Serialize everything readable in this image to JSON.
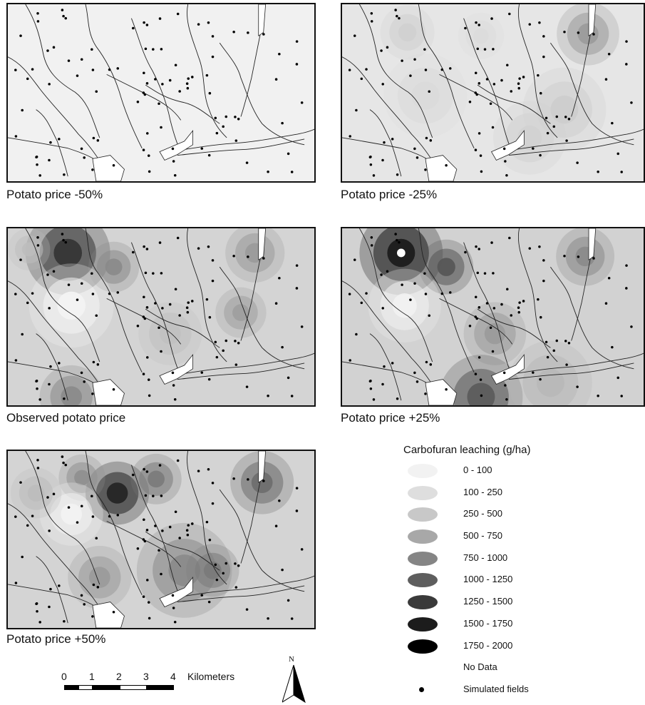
{
  "panels": [
    {
      "id": "p50minus",
      "caption": "Potato price -50%",
      "intensity": 0
    },
    {
      "id": "p25minus",
      "caption": "Potato price -25%",
      "intensity": 1
    },
    {
      "id": "observed",
      "caption": "Observed potato price",
      "intensity": 2
    },
    {
      "id": "p25plus",
      "caption": "Potato price +25%",
      "intensity": 3
    },
    {
      "id": "p50plus",
      "caption": "Potato price +50%",
      "intensity": 4
    }
  ],
  "legend": {
    "title": "Carbofuran leaching (g/ha)",
    "classes": [
      {
        "label": "0 - 100",
        "color": "#f2f2f2"
      },
      {
        "label": "100 - 250",
        "color": "#dedede"
      },
      {
        "label": "250 - 500",
        "color": "#c8c8c8"
      },
      {
        "label": "500 - 750",
        "color": "#a8a8a8"
      },
      {
        "label": "750 - 1000",
        "color": "#858585"
      },
      {
        "label": "1000 - 1250",
        "color": "#5e5e5e"
      },
      {
        "label": "1250 - 1500",
        "color": "#3a3a3a"
      },
      {
        "label": "1500 - 1750",
        "color": "#1c1c1c"
      },
      {
        "label": "1750 - 2000",
        "color": "#000000"
      }
    ],
    "no_data": "No Data",
    "fields_label": "Simulated fields"
  },
  "scale": {
    "ticks": [
      "0",
      "1",
      "2",
      "3",
      "4"
    ],
    "unit": "Kilometers"
  },
  "north_label": "N"
}
